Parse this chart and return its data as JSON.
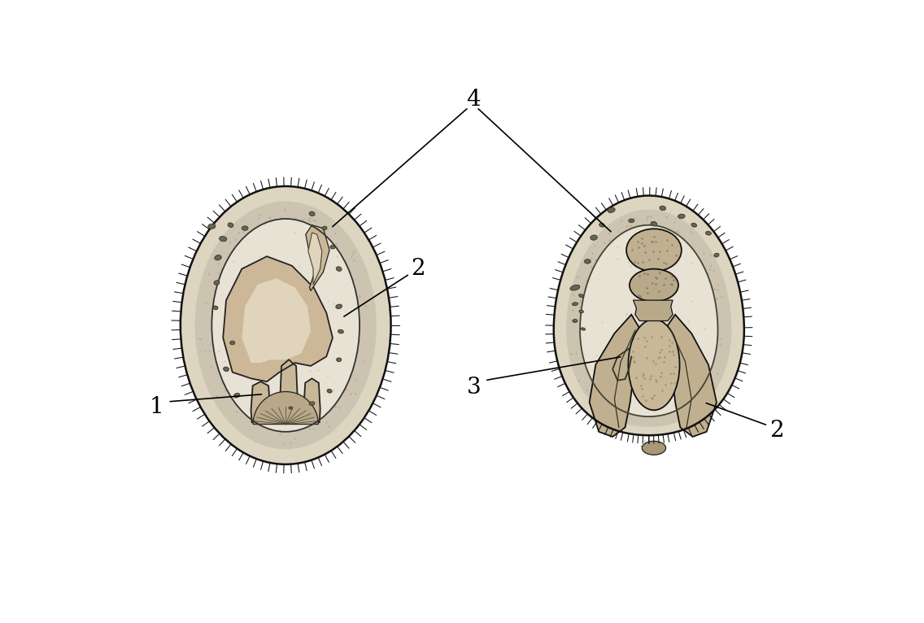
{
  "bg": "#ffffff",
  "cilia_color": "#111111",
  "body_outer_fill": "#ddd5c0",
  "body_mid_fill": "#c8bfa8",
  "body_inner_fill": "#e8e2d5",
  "cavity_fill": "#ede8de",
  "organ_fill": "#c0b090",
  "organ_dark": "#a09070",
  "organ_light": "#d8cdb0",
  "outline": "#111111",
  "dot_dark": "#555544",
  "dot_med": "#887766",
  "label_fs": 20,
  "lw_main": 1.8,
  "lw_med": 1.3,
  "lw_thin": 0.9
}
